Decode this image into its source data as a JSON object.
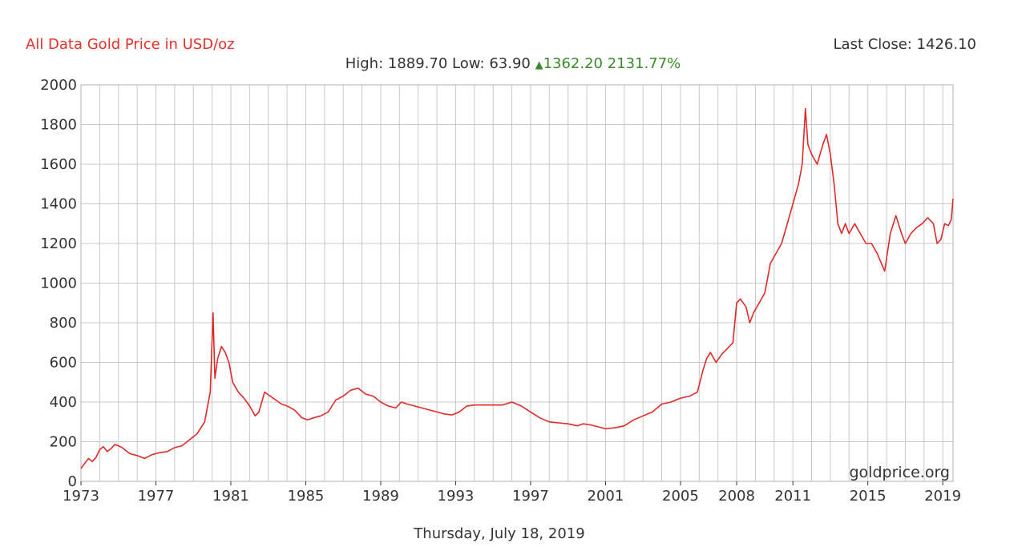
{
  "header": {
    "title": "All Data Gold Price in USD/oz",
    "last_close": "Last Close: 1426.10",
    "high_label": "High:",
    "high_value": "1889.70",
    "low_label": "Low:",
    "low_value": "63.90",
    "change_value": "1362.20",
    "change_pct": "2131.77%"
  },
  "footer": {
    "date": "Thursday, July 18, 2019"
  },
  "watermark": "goldprice.org",
  "colors": {
    "line": "#e02a28",
    "title": "#e8302a",
    "change_up": "#3a8a2a",
    "grid": "#c8c8c8",
    "text": "#333333"
  },
  "icons": {
    "change_indicator": "triangle-up-icon"
  },
  "chart_data": {
    "type": "line",
    "title": "All Data Gold Price in USD/oz",
    "xlabel": "",
    "ylabel": "",
    "xlim": [
      1973,
      2019.55
    ],
    "ylim": [
      0,
      2000
    ],
    "x_ticks": [
      "1973",
      "1977",
      "1981",
      "1985",
      "1989",
      "1993",
      "1997",
      "2001",
      "2005",
      "2008",
      "2011",
      "2015",
      "2019"
    ],
    "y_ticks": [
      0,
      200,
      400,
      600,
      800,
      1000,
      1200,
      1400,
      1600,
      1800,
      2000
    ],
    "grid": true,
    "legend": "none",
    "series": [
      {
        "x": [
          1973.0,
          1973.2,
          1973.4,
          1973.6,
          1973.8,
          1974.0,
          1974.2,
          1974.4,
          1974.6,
          1974.8,
          1975.0,
          1975.2,
          1975.6,
          1976.0,
          1976.4,
          1976.8,
          1977.2,
          1977.6,
          1978.0,
          1978.4,
          1978.8,
          1979.2,
          1979.6,
          1979.9,
          1980.05,
          1980.15,
          1980.3,
          1980.5,
          1980.7,
          1980.9,
          1981.1,
          1981.4,
          1981.7,
          1982.0,
          1982.3,
          1982.5,
          1982.8,
          1983.1,
          1983.4,
          1983.7,
          1984.0,
          1984.4,
          1984.8,
          1985.1,
          1985.4,
          1985.8,
          1986.2,
          1986.6,
          1987.0,
          1987.4,
          1987.8,
          1988.2,
          1988.6,
          1989.0,
          1989.4,
          1989.8,
          1990.1,
          1990.4,
          1990.8,
          1991.2,
          1991.6,
          1992.0,
          1992.4,
          1992.8,
          1993.2,
          1993.6,
          1994.0,
          1994.5,
          1995.0,
          1995.5,
          1996.0,
          1996.5,
          1997.0,
          1997.5,
          1998.0,
          1998.5,
          1999.0,
          1999.5,
          1999.8,
          2000.2,
          2000.6,
          2001.0,
          2001.5,
          2002.0,
          2002.5,
          2003.0,
          2003.5,
          2004.0,
          2004.5,
          2005.0,
          2005.5,
          2005.9,
          2006.2,
          2006.4,
          2006.6,
          2006.9,
          2007.2,
          2007.5,
          2007.8,
          2008.0,
          2008.2,
          2008.5,
          2008.7,
          2008.9,
          2009.2,
          2009.5,
          2009.8,
          2010.1,
          2010.4,
          2010.7,
          2011.0,
          2011.3,
          2011.5,
          2011.67,
          2011.8,
          2012.0,
          2012.3,
          2012.6,
          2012.8,
          2013.0,
          2013.2,
          2013.4,
          2013.6,
          2013.8,
          2014.0,
          2014.3,
          2014.6,
          2014.9,
          2015.2,
          2015.5,
          2015.9,
          2016.2,
          2016.5,
          2016.8,
          2017.0,
          2017.3,
          2017.6,
          2017.9,
          2018.2,
          2018.5,
          2018.7,
          2018.9,
          2019.1,
          2019.3,
          2019.45,
          2019.55
        ],
        "y": [
          65,
          90,
          115,
          100,
          120,
          160,
          175,
          150,
          165,
          185,
          180,
          170,
          140,
          130,
          115,
          135,
          145,
          150,
          170,
          180,
          210,
          240,
          300,
          450,
          850,
          520,
          620,
          680,
          650,
          600,
          500,
          450,
          420,
          380,
          330,
          350,
          450,
          430,
          410,
          390,
          380,
          360,
          320,
          310,
          320,
          330,
          350,
          410,
          430,
          460,
          470,
          440,
          430,
          400,
          380,
          370,
          400,
          390,
          380,
          370,
          360,
          350,
          340,
          335,
          350,
          380,
          385,
          385,
          385,
          385,
          400,
          380,
          350,
          320,
          300,
          295,
          290,
          280,
          290,
          285,
          275,
          265,
          270,
          280,
          310,
          330,
          350,
          390,
          400,
          420,
          430,
          450,
          560,
          620,
          650,
          600,
          640,
          670,
          700,
          900,
          920,
          880,
          800,
          850,
          900,
          950,
          1100,
          1150,
          1200,
          1300,
          1400,
          1500,
          1600,
          1880,
          1700,
          1650,
          1600,
          1700,
          1750,
          1650,
          1500,
          1300,
          1250,
          1300,
          1250,
          1300,
          1250,
          1200,
          1200,
          1150,
          1060,
          1250,
          1340,
          1250,
          1200,
          1250,
          1280,
          1300,
          1330,
          1300,
          1200,
          1220,
          1300,
          1290,
          1320,
          1426
        ]
      }
    ]
  }
}
